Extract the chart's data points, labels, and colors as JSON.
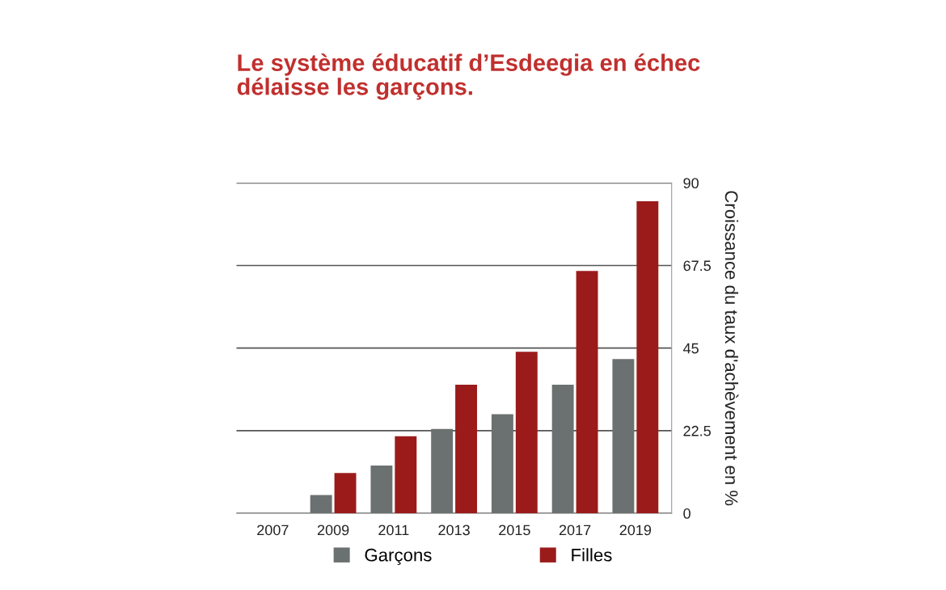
{
  "chart_data": {
    "type": "bar",
    "title": "Le système éducatif d’Esdeegia en échec\ndélaisse les garçons.",
    "ylabel": "Croissance du taux d'achèvement en %",
    "categories": [
      "2007",
      "2009",
      "2011",
      "2013",
      "2015",
      "2017",
      "2019"
    ],
    "series": [
      {
        "name": "Garçons",
        "color": "#6b7170",
        "values": [
          null,
          5,
          13,
          23,
          27,
          35,
          42
        ]
      },
      {
        "name": "Filles",
        "color": "#9b1b1b",
        "values": [
          null,
          11,
          21,
          35,
          44,
          66,
          85
        ]
      }
    ],
    "ylim": [
      0,
      90
    ],
    "yticks": [
      0,
      22.5,
      45,
      67.5,
      90
    ],
    "grid": "y",
    "legend": "bottom"
  }
}
